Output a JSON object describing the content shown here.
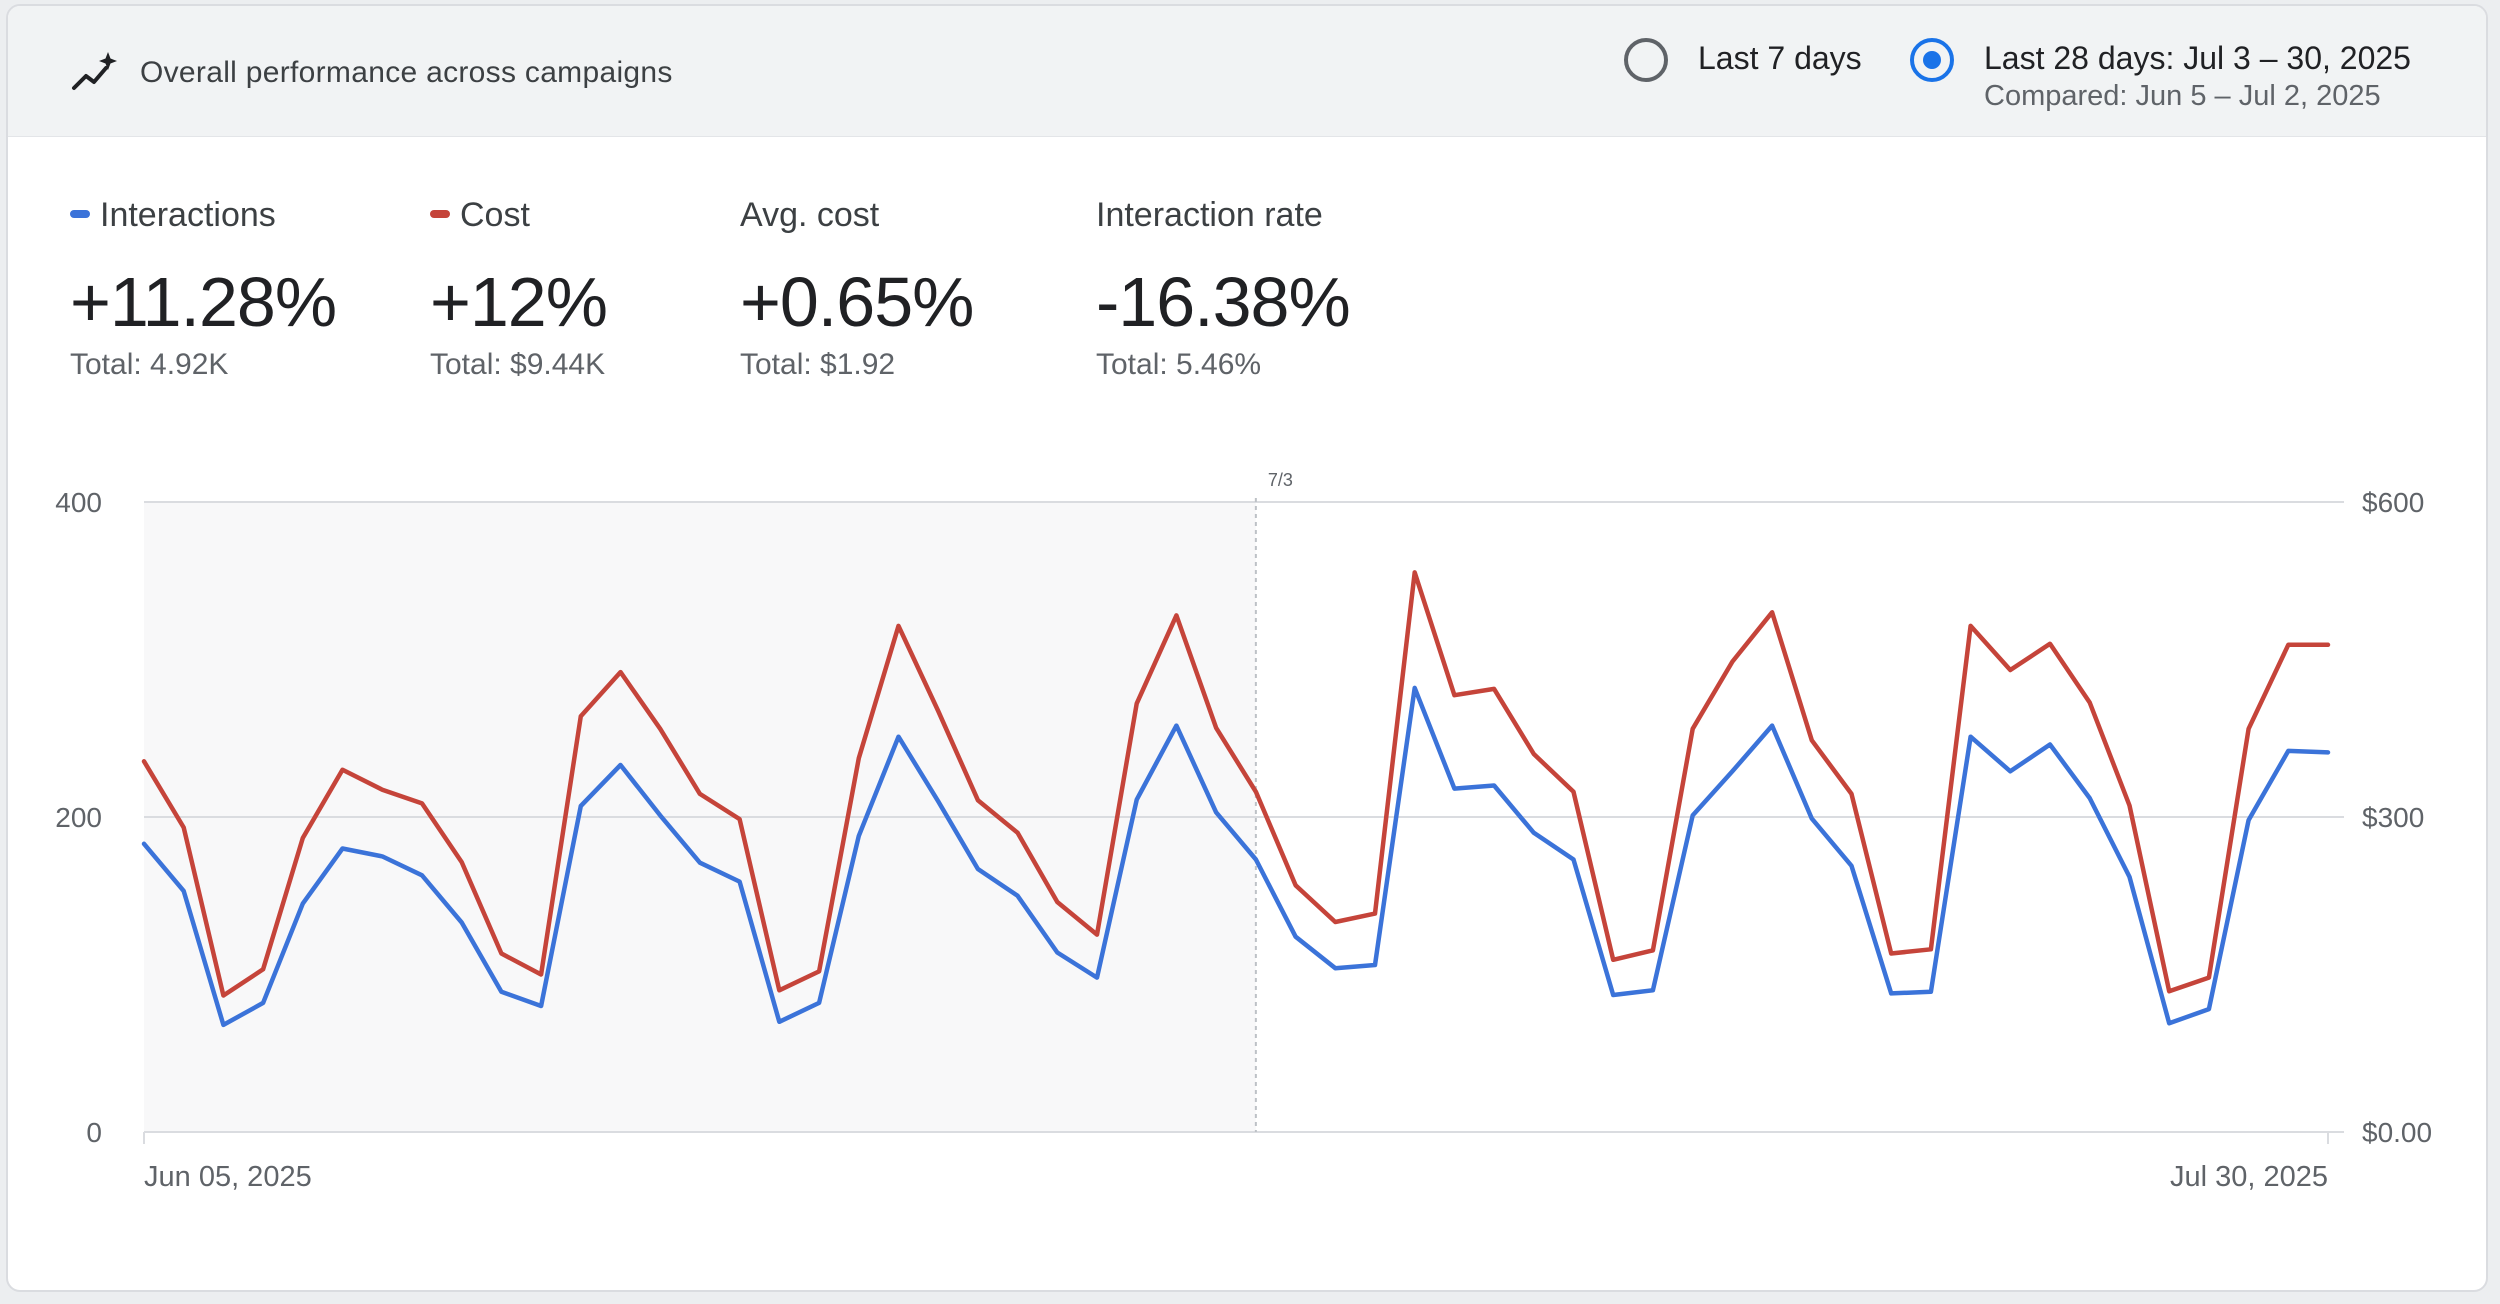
{
  "header": {
    "title": "Overall performance across campaigns",
    "icon": "sparkle-trend-icon",
    "range_options": [
      {
        "label": "Last 7 days",
        "sub": "",
        "selected": false
      },
      {
        "label": "Last 28 days: Jul 3 – 30, 2025",
        "sub": "Compared: Jun 5 – Jul 2, 2025",
        "selected": true
      }
    ]
  },
  "metrics": [
    {
      "label": "Interactions",
      "value": "+11.28%",
      "total": "Total: 4.92K",
      "color": "#3b73d9"
    },
    {
      "label": "Cost",
      "value": "+12%",
      "total": "Total: $9.44K",
      "color": "#c5443a"
    },
    {
      "label": "Avg. cost",
      "value": "+0.65%",
      "total": "Total: $1.92",
      "color": ""
    },
    {
      "label": "Interaction rate",
      "value": "-16.38%",
      "total": "Total: 5.46%",
      "color": ""
    }
  ],
  "chart_data": {
    "type": "line",
    "x_start_label": "Jun 05, 2025",
    "x_end_label": "Jul 30, 2025",
    "compare_divider_label": "7/3",
    "y_left": {
      "min": 0,
      "max": 400,
      "ticks": [
        "0",
        "200",
        "400"
      ]
    },
    "y_right": {
      "min": 0,
      "max": 600,
      "ticks": [
        "$0.00",
        "$300",
        "$600"
      ]
    },
    "grid": true,
    "series": [
      {
        "name": "Interactions",
        "axis": "left",
        "color": "#3b73d9",
        "values": [
          183,
          153,
          68,
          82,
          145,
          180,
          175,
          163,
          133,
          89,
          80,
          207,
          233,
          201,
          171,
          159,
          70,
          82,
          188,
          251,
          210,
          167,
          150,
          114,
          98,
          211,
          258,
          203,
          173,
          124,
          104,
          106,
          282,
          218,
          220,
          190,
          173,
          87,
          90,
          201,
          229,
          258,
          199,
          169,
          88,
          89,
          251,
          229,
          246,
          212,
          162,
          69,
          78,
          198,
          242,
          241
        ]
      },
      {
        "name": "Cost",
        "axis": "right",
        "color": "#c5443a",
        "values": [
          353,
          290,
          130,
          155,
          280,
          345,
          326,
          313,
          257,
          170,
          150,
          396,
          438,
          384,
          322,
          298,
          135,
          153,
          356,
          482,
          401,
          316,
          285,
          219,
          188,
          408,
          492,
          385,
          324,
          235,
          200,
          208,
          533,
          416,
          422,
          360,
          324,
          164,
          173,
          384,
          448,
          495,
          373,
          322,
          170,
          174,
          482,
          440,
          465,
          409,
          311,
          134,
          147,
          384,
          464,
          464
        ]
      }
    ]
  }
}
